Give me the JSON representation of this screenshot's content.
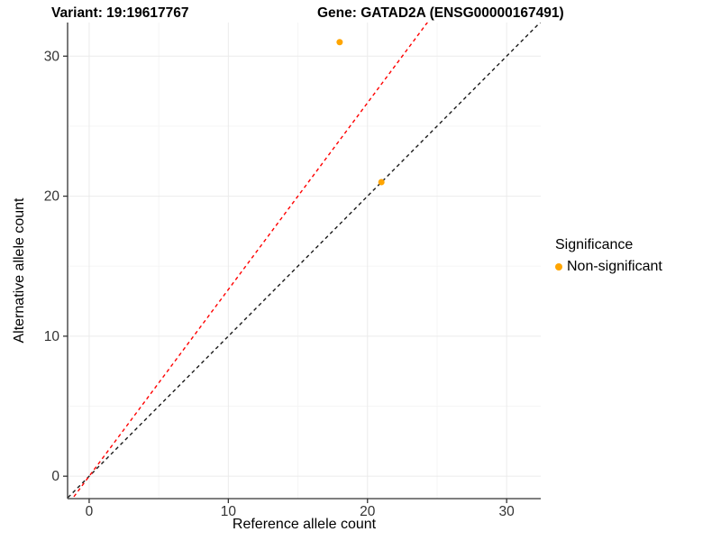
{
  "chart_data": {
    "type": "scatter",
    "title_left": "Variant: 19:19617767",
    "title_right": "Gene: GATAD2A (ENSG00000167491)",
    "xlabel": "Reference allele count",
    "ylabel": "Alternative allele count",
    "xlim": [
      -1.55,
      32.45
    ],
    "ylim": [
      -1.6,
      32.4
    ],
    "x_ticks": [
      0,
      10,
      20,
      30
    ],
    "y_ticks": [
      0,
      10,
      20,
      30
    ],
    "x_minor_ticks": [
      5,
      15,
      25
    ],
    "y_minor_ticks": [
      5,
      15,
      25
    ],
    "grid": true,
    "legend_position": "right",
    "series": [
      {
        "name": "Non-significant",
        "color": "#FFA500",
        "points": [
          {
            "x": 18,
            "y": 31
          },
          {
            "x": 21,
            "y": 21
          }
        ]
      }
    ],
    "lines": [
      {
        "name": "identity-line",
        "slope": 1.0,
        "intercept": 0,
        "color": "#1a1a1a",
        "style": "dashed"
      },
      {
        "name": "expected-ratio-line",
        "slope": 1.3333,
        "intercept": 0,
        "color": "#ff0000",
        "style": "dashed"
      }
    ],
    "legend": {
      "title": "Significance",
      "items": [
        {
          "label": "Non-significant",
          "color": "#FFA500"
        }
      ]
    }
  },
  "colors": {
    "point": "#FFA500",
    "identity_line": "#1a1a1a",
    "ratio_line": "#ff0000",
    "grid_major": "#ebebeb",
    "grid_minor": "#f5f5f5",
    "axis_line": "#333333",
    "tick_label": "#333333",
    "background": "#ffffff"
  }
}
